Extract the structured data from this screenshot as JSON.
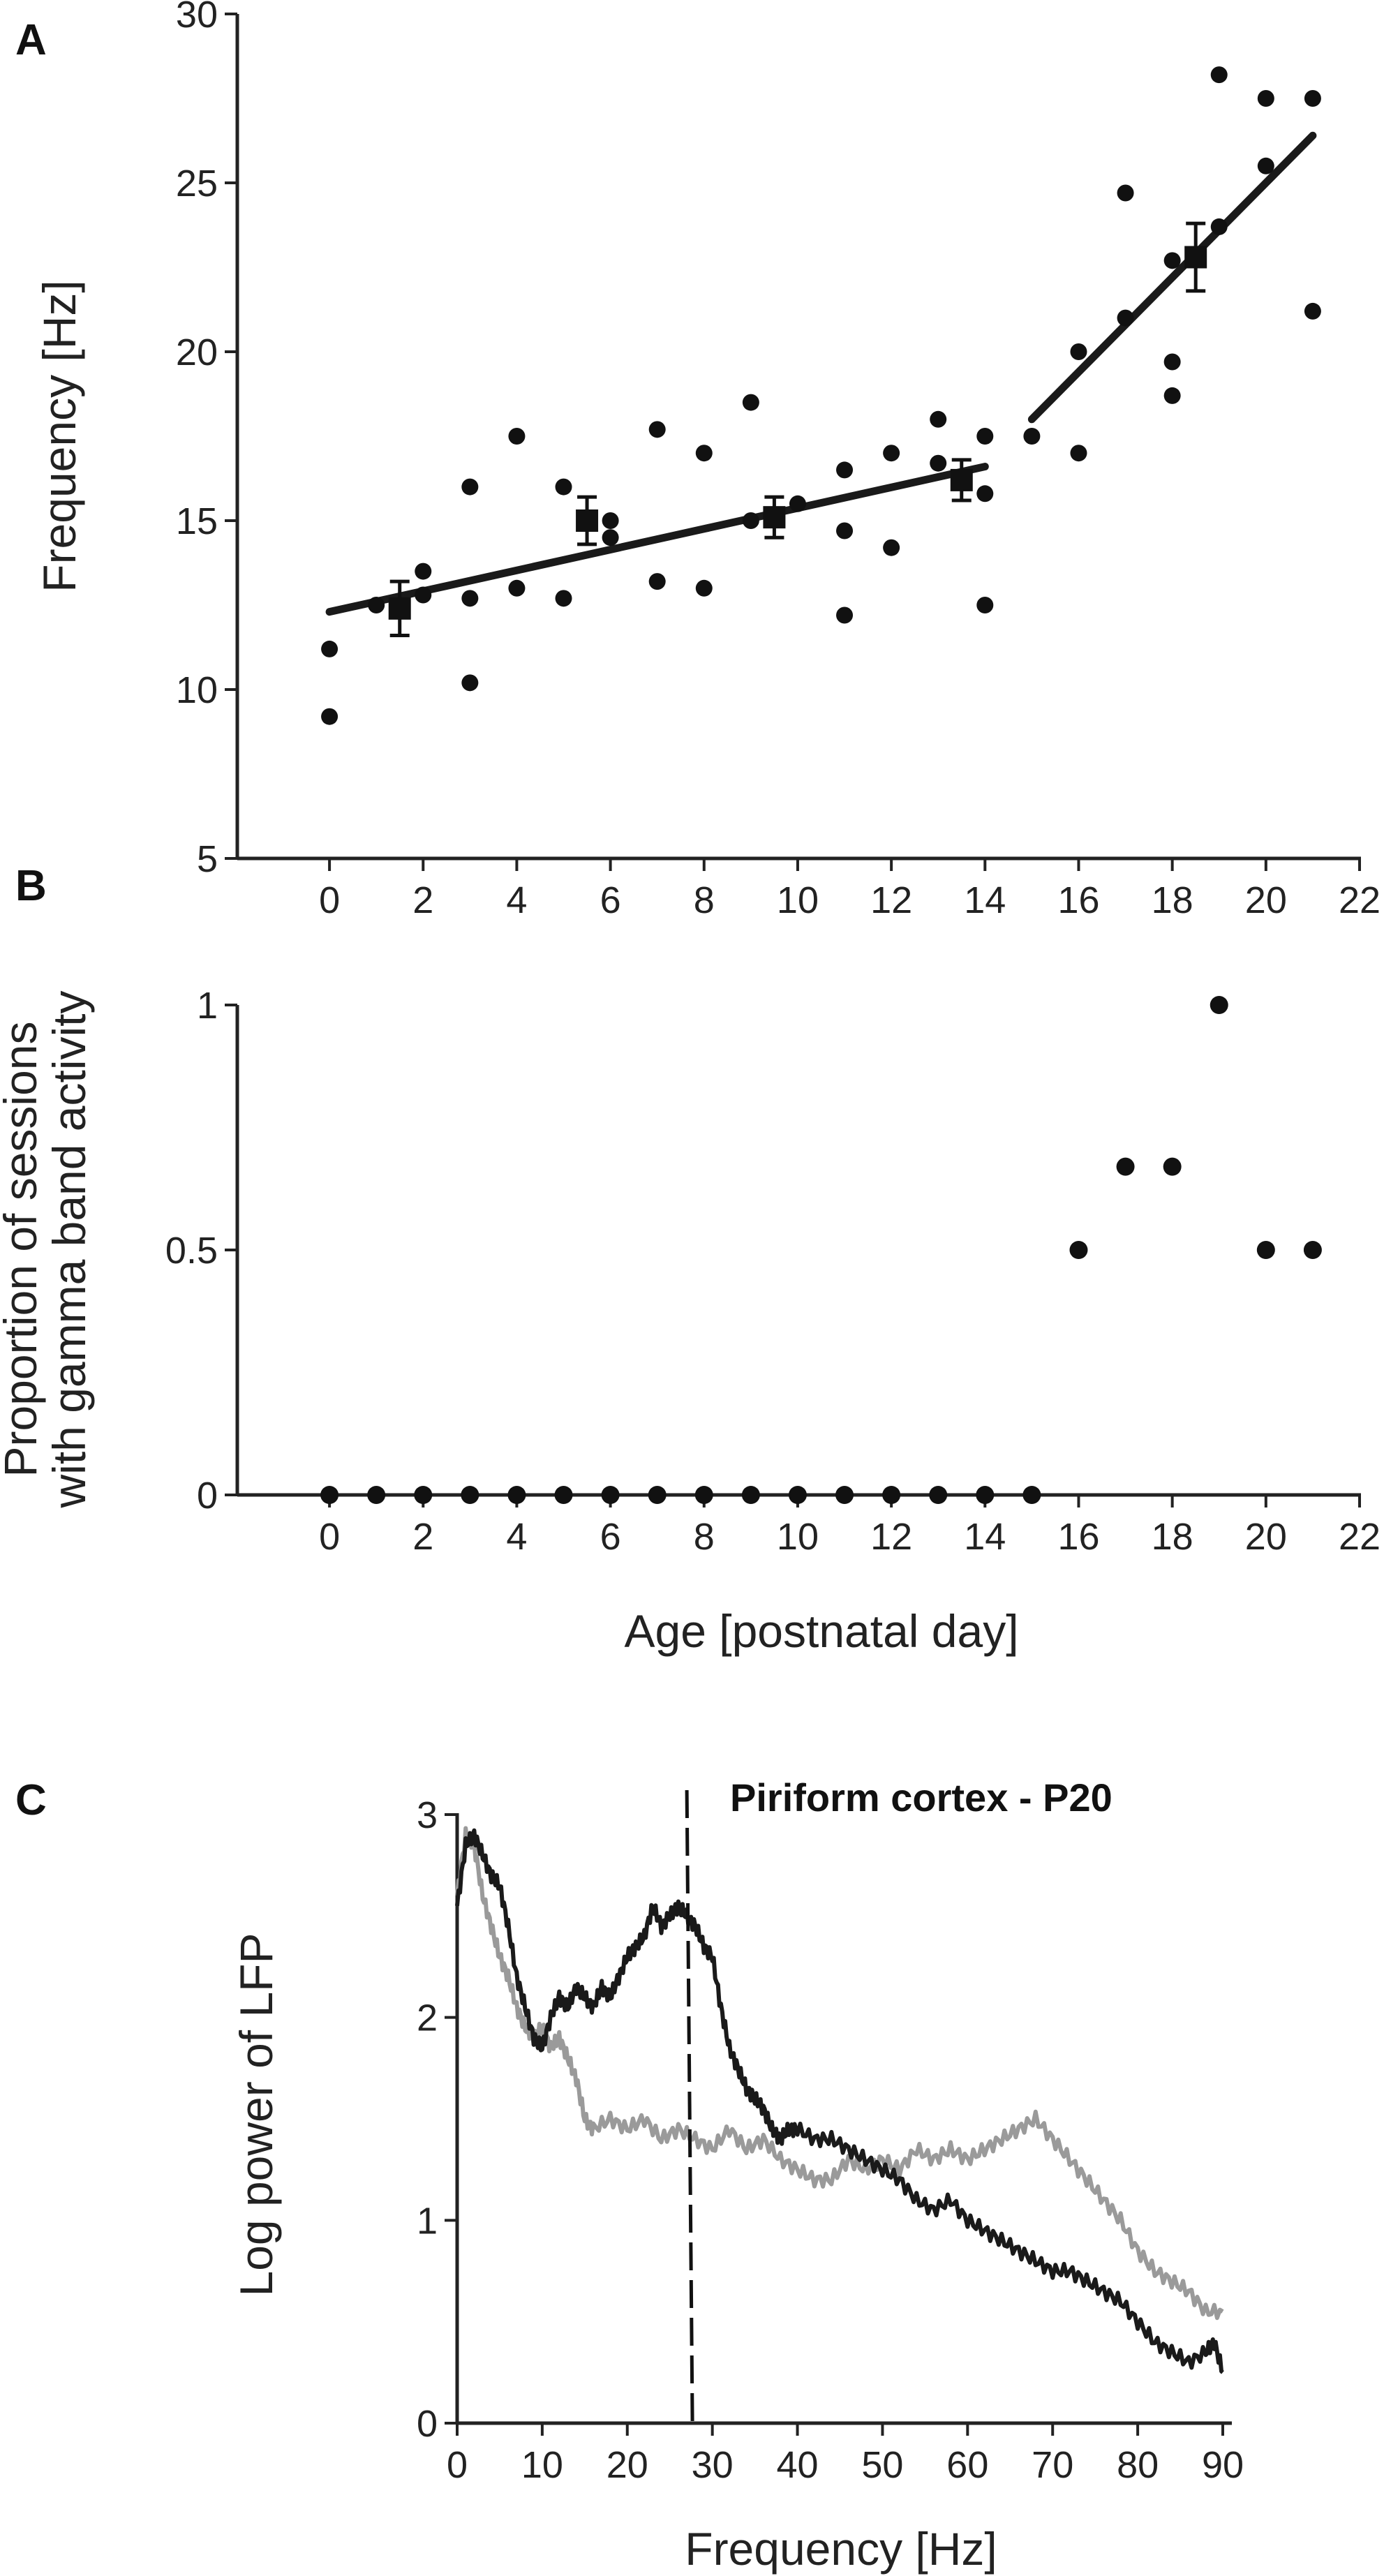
{
  "chart_data": [
    {
      "panel": "A",
      "type": "scatter",
      "ylabel": "Frequency [Hz]",
      "xlim": [
        -1,
        22
      ],
      "ylim": [
        5,
        30
      ],
      "xticks": [
        0,
        2,
        4,
        6,
        8,
        10,
        12,
        14,
        16,
        18,
        20,
        22
      ],
      "yticks": [
        5,
        10,
        15,
        20,
        25,
        30
      ],
      "points": [
        [
          0,
          9.2
        ],
        [
          0,
          11.2
        ],
        [
          1,
          12.5
        ],
        [
          2,
          13.5
        ],
        [
          2,
          12.8
        ],
        [
          3,
          16.0
        ],
        [
          3,
          12.7
        ],
        [
          3,
          10.2
        ],
        [
          4,
          17.5
        ],
        [
          4,
          13.0
        ],
        [
          5,
          16.0
        ],
        [
          5,
          12.7
        ],
        [
          6,
          15.0
        ],
        [
          6,
          14.5
        ],
        [
          7,
          17.7
        ],
        [
          7,
          13.2
        ],
        [
          8,
          17.0
        ],
        [
          8,
          13.0
        ],
        [
          9,
          18.5
        ],
        [
          9,
          15.0
        ],
        [
          10,
          15.5
        ],
        [
          11,
          16.5
        ],
        [
          11,
          14.7
        ],
        [
          11,
          12.2
        ],
        [
          12,
          17.0
        ],
        [
          12,
          14.2
        ],
        [
          13,
          18.0
        ],
        [
          13,
          16.7
        ],
        [
          14,
          17.5
        ],
        [
          14,
          15.8
        ],
        [
          14,
          12.5
        ],
        [
          15,
          17.5
        ],
        [
          16,
          20.0
        ],
        [
          16,
          17.0
        ],
        [
          17,
          24.7
        ],
        [
          17,
          21.0
        ],
        [
          18,
          22.7
        ],
        [
          18,
          19.7
        ],
        [
          18,
          18.7
        ],
        [
          19,
          28.2
        ],
        [
          19,
          23.7
        ],
        [
          20,
          27.5
        ],
        [
          20,
          25.5
        ],
        [
          21,
          27.5
        ],
        [
          21,
          21.2
        ]
      ],
      "means": [
        {
          "x": 1.5,
          "y": 12.4,
          "err": 0.8
        },
        {
          "x": 5.5,
          "y": 15.0,
          "err": 0.7
        },
        {
          "x": 9.5,
          "y": 15.1,
          "err": 0.6
        },
        {
          "x": 13.5,
          "y": 16.2,
          "err": 0.6
        },
        {
          "x": 18.5,
          "y": 22.8,
          "err": 1.0
        }
      ],
      "fits": [
        {
          "x": [
            0,
            14
          ],
          "y": [
            12.3,
            16.6
          ]
        },
        {
          "x": [
            15,
            21
          ],
          "y": [
            18.0,
            26.4
          ]
        }
      ]
    },
    {
      "panel": "B",
      "type": "scatter",
      "ylabel_lines": [
        "Proportion of sessions",
        "with gamma band activity"
      ],
      "xlabel": "Age [postnatal day]",
      "xlim": [
        -1,
        22
      ],
      "ylim": [
        0,
        1
      ],
      "xticks": [
        0,
        2,
        4,
        6,
        8,
        10,
        12,
        14,
        16,
        18,
        20,
        22
      ],
      "yticks": [
        0,
        0.5,
        1
      ],
      "points": [
        [
          0,
          0
        ],
        [
          1,
          0
        ],
        [
          2,
          0
        ],
        [
          3,
          0
        ],
        [
          4,
          0
        ],
        [
          5,
          0
        ],
        [
          6,
          0
        ],
        [
          7,
          0
        ],
        [
          8,
          0
        ],
        [
          9,
          0
        ],
        [
          10,
          0
        ],
        [
          11,
          0
        ],
        [
          12,
          0
        ],
        [
          13,
          0
        ],
        [
          14,
          0
        ],
        [
          15,
          0
        ],
        [
          16,
          0.5
        ],
        [
          17,
          0.67
        ],
        [
          18,
          0.67
        ],
        [
          19,
          1.0
        ],
        [
          20,
          0.5
        ],
        [
          21,
          0.5
        ]
      ]
    },
    {
      "panel": "C",
      "type": "line",
      "title": "Piriform cortex - P20",
      "ylabel": "Log power of LFP",
      "xlabel": "Frequency [Hz]",
      "xlim": [
        0,
        90
      ],
      "ylim": [
        0,
        3
      ],
      "xticks": [
        0,
        10,
        20,
        30,
        40,
        50,
        60,
        70,
        80,
        90
      ],
      "yticks": [
        0,
        1,
        2,
        3
      ],
      "dashed_line_x": 27,
      "series": [
        {
          "name": "dark",
          "color": "#1a1a1a",
          "x": [
            0,
            1,
            2,
            3,
            4,
            5,
            6,
            7,
            8,
            9,
            10,
            11,
            12,
            13,
            14,
            15,
            16,
            17,
            18,
            19,
            20,
            21,
            22,
            23,
            24,
            25,
            26,
            27,
            28,
            29,
            30,
            31,
            32,
            33,
            34,
            35,
            36,
            37,
            38,
            39,
            40,
            42,
            44,
            46,
            48,
            50,
            52,
            54,
            56,
            58,
            60,
            62,
            64,
            66,
            68,
            70,
            72,
            74,
            76,
            78,
            80,
            82,
            84,
            86,
            88,
            89,
            90
          ],
          "y": [
            2.55,
            2.85,
            2.9,
            2.8,
            2.7,
            2.65,
            2.45,
            2.2,
            2.05,
            1.9,
            1.85,
            2.0,
            2.1,
            2.05,
            2.15,
            2.1,
            2.05,
            2.15,
            2.1,
            2.2,
            2.3,
            2.35,
            2.4,
            2.55,
            2.45,
            2.5,
            2.55,
            2.5,
            2.45,
            2.35,
            2.3,
            2.05,
            1.85,
            1.75,
            1.65,
            1.6,
            1.55,
            1.45,
            1.4,
            1.45,
            1.45,
            1.4,
            1.4,
            1.35,
            1.3,
            1.25,
            1.2,
            1.1,
            1.05,
            1.1,
            1.0,
            0.95,
            0.9,
            0.85,
            0.8,
            0.75,
            0.75,
            0.7,
            0.65,
            0.6,
            0.5,
            0.4,
            0.35,
            0.3,
            0.35,
            0.4,
            0.25
          ]
        },
        {
          "name": "gray",
          "color": "#9a9a9a",
          "x": [
            0,
            1,
            2,
            3,
            4,
            5,
            6,
            7,
            8,
            9,
            10,
            11,
            12,
            13,
            14,
            15,
            16,
            18,
            20,
            22,
            24,
            26,
            28,
            30,
            32,
            34,
            36,
            38,
            40,
            42,
            44,
            46,
            48,
            50,
            52,
            54,
            56,
            58,
            60,
            62,
            64,
            66,
            68,
            70,
            72,
            74,
            76,
            78,
            80,
            82,
            84,
            86,
            88,
            90
          ],
          "y": [
            2.6,
            2.9,
            2.85,
            2.6,
            2.45,
            2.3,
            2.2,
            2.05,
            1.95,
            1.9,
            1.95,
            1.85,
            1.9,
            1.8,
            1.7,
            1.5,
            1.45,
            1.5,
            1.45,
            1.5,
            1.4,
            1.45,
            1.4,
            1.35,
            1.45,
            1.35,
            1.4,
            1.3,
            1.25,
            1.2,
            1.2,
            1.3,
            1.25,
            1.3,
            1.25,
            1.35,
            1.3,
            1.35,
            1.3,
            1.35,
            1.4,
            1.45,
            1.5,
            1.4,
            1.3,
            1.2,
            1.1,
            1.0,
            0.85,
            0.75,
            0.7,
            0.65,
            0.55,
            0.55
          ]
        }
      ]
    }
  ]
}
